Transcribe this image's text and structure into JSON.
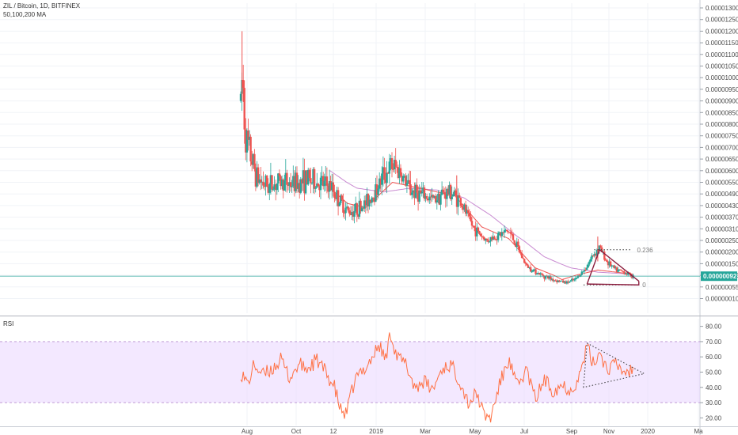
{
  "header": {
    "symbol": "ZIL / Bitcoin, 1D, BITFINEX",
    "indicator": "50,100,200 MA"
  },
  "rsi_panel": {
    "label": "RSI"
  },
  "colors": {
    "up": "#26a69a",
    "down": "#ef5350",
    "ma_fast": "#ef5350",
    "ma_slow": "#c98bd1",
    "rsi_line": "#ff7043",
    "rsi_band": "#ead6ff",
    "last_price": "#26a69a",
    "pattern": "#8b1e3f"
  },
  "chart_data": [
    {
      "type": "candlestick",
      "title": "ZIL / Bitcoin, 1D, BITFINEX",
      "subtitle": "50,100,200 MA",
      "x_ticks": [
        "Aug",
        "Oct",
        "12",
        "2019",
        "Mar",
        "May",
        "Jul",
        "Sep",
        "Nov",
        "2020",
        "Ma"
      ],
      "y_ticks": [
        "0.00001300",
        "0.00001250",
        "0.00001200",
        "0.00001150",
        "0.00001100",
        "0.00001050",
        "0.00001000",
        "0.00000950",
        "0.00000900",
        "0.00000850",
        "0.00000800",
        "0.00000750",
        "0.00000700",
        "0.00000650",
        "0.00000600",
        "0.00000550",
        "0.00000490",
        "0.00000430",
        "0.00000370",
        "0.00000310",
        "0.00000250",
        "0.00000200",
        "0.00000150",
        "0.00000095",
        "0.00000055",
        "0.00000010"
      ],
      "last_price": "0.00000092",
      "annotations": [
        "0.236",
        "0"
      ],
      "price_keypoints": [
        {
          "t": 0,
          "p": 9e-06
        },
        {
          "t": 2,
          "p": 1.02e-05
        },
        {
          "t": 5,
          "p": 7.5e-06
        },
        {
          "t": 10,
          "p": 6.8e-06
        },
        {
          "t": 18,
          "p": 5.7e-06
        },
        {
          "t": 30,
          "p": 5.3e-06
        },
        {
          "t": 45,
          "p": 5.5e-06
        },
        {
          "t": 60,
          "p": 5.4e-06
        },
        {
          "t": 75,
          "p": 5.6e-06
        },
        {
          "t": 90,
          "p": 5.4e-06
        },
        {
          "t": 100,
          "p": 5.3e-06
        },
        {
          "t": 110,
          "p": 4.6e-06
        },
        {
          "t": 120,
          "p": 4e-06
        },
        {
          "t": 130,
          "p": 4.1e-06
        },
        {
          "t": 140,
          "p": 4.4e-06
        },
        {
          "t": 150,
          "p": 5e-06
        },
        {
          "t": 160,
          "p": 5.8e-06
        },
        {
          "t": 170,
          "p": 6.2e-06
        },
        {
          "t": 178,
          "p": 6e-06
        },
        {
          "t": 190,
          "p": 5.1e-06
        },
        {
          "t": 205,
          "p": 4.8e-06
        },
        {
          "t": 215,
          "p": 4.6e-06
        },
        {
          "t": 225,
          "p": 4.9e-06
        },
        {
          "t": 235,
          "p": 5e-06
        },
        {
          "t": 245,
          "p": 4.6e-06
        },
        {
          "t": 260,
          "p": 3.2e-06
        },
        {
          "t": 275,
          "p": 2.5e-06
        },
        {
          "t": 290,
          "p": 2.8e-06
        },
        {
          "t": 300,
          "p": 3e-06
        },
        {
          "t": 310,
          "p": 2.2e-06
        },
        {
          "t": 320,
          "p": 1.4e-06
        },
        {
          "t": 335,
          "p": 1e-06
        },
        {
          "t": 350,
          "p": 8e-07
        },
        {
          "t": 365,
          "p": 7e-07
        },
        {
          "t": 375,
          "p": 8e-07
        },
        {
          "t": 385,
          "p": 1.2e-06
        },
        {
          "t": 395,
          "p": 1.9e-06
        },
        {
          "t": 402,
          "p": 2.2e-06
        },
        {
          "t": 410,
          "p": 1.6e-06
        },
        {
          "t": 420,
          "p": 1.2e-06
        },
        {
          "t": 430,
          "p": 1.1e-06
        },
        {
          "t": 440,
          "p": 9e-07
        }
      ],
      "ma_keypoints": [
        {
          "t": 100,
          "p": 6e-06
        },
        {
          "t": 130,
          "p": 5.2e-06
        },
        {
          "t": 160,
          "p": 5e-06
        },
        {
          "t": 190,
          "p": 5.2e-06
        },
        {
          "t": 220,
          "p": 5.1e-06
        },
        {
          "t": 250,
          "p": 4.7e-06
        },
        {
          "t": 280,
          "p": 3.8e-06
        },
        {
          "t": 310,
          "p": 2.7e-06
        },
        {
          "t": 340,
          "p": 1.8e-06
        },
        {
          "t": 370,
          "p": 1.3e-06
        },
        {
          "t": 400,
          "p": 1.1e-06
        },
        {
          "t": 440,
          "p": 1e-06
        }
      ],
      "ma_fast_keypoints": [
        {
          "t": 90,
          "p": 5.6e-06
        },
        {
          "t": 120,
          "p": 4.4e-06
        },
        {
          "t": 140,
          "p": 4.2e-06
        },
        {
          "t": 170,
          "p": 5.5e-06
        },
        {
          "t": 200,
          "p": 5.2e-06
        },
        {
          "t": 240,
          "p": 4.8e-06
        },
        {
          "t": 270,
          "p": 3.2e-06
        },
        {
          "t": 300,
          "p": 2.6e-06
        },
        {
          "t": 330,
          "p": 1.3e-06
        },
        {
          "t": 360,
          "p": 8e-07
        },
        {
          "t": 400,
          "p": 1.2e-06
        },
        {
          "t": 440,
          "p": 1e-06
        }
      ]
    },
    {
      "type": "line",
      "title": "RSI",
      "y_ticks": [
        "80.00",
        "70.00",
        "60.00",
        "50.00",
        "40.00",
        "30.00",
        "20.00"
      ],
      "ylim": [
        15,
        85
      ],
      "band": [
        30,
        70
      ],
      "rsi_keypoints": [
        {
          "t": 0,
          "v": 50
        },
        {
          "t": 8,
          "v": 42
        },
        {
          "t": 15,
          "v": 55
        },
        {
          "t": 25,
          "v": 48
        },
        {
          "t": 35,
          "v": 52
        },
        {
          "t": 45,
          "v": 58
        },
        {
          "t": 55,
          "v": 46
        },
        {
          "t": 65,
          "v": 55
        },
        {
          "t": 75,
          "v": 52
        },
        {
          "t": 85,
          "v": 58
        },
        {
          "t": 95,
          "v": 50
        },
        {
          "t": 105,
          "v": 40
        },
        {
          "t": 112,
          "v": 25
        },
        {
          "t": 118,
          "v": 22
        },
        {
          "t": 128,
          "v": 45
        },
        {
          "t": 138,
          "v": 52
        },
        {
          "t": 148,
          "v": 60
        },
        {
          "t": 155,
          "v": 68
        },
        {
          "t": 162,
          "v": 58
        },
        {
          "t": 168,
          "v": 76
        },
        {
          "t": 175,
          "v": 60
        },
        {
          "t": 185,
          "v": 55
        },
        {
          "t": 195,
          "v": 40
        },
        {
          "t": 205,
          "v": 44
        },
        {
          "t": 215,
          "v": 38
        },
        {
          "t": 225,
          "v": 52
        },
        {
          "t": 235,
          "v": 55
        },
        {
          "t": 245,
          "v": 45
        },
        {
          "t": 255,
          "v": 30
        },
        {
          "t": 265,
          "v": 36
        },
        {
          "t": 272,
          "v": 22
        },
        {
          "t": 280,
          "v": 20
        },
        {
          "t": 290,
          "v": 42
        },
        {
          "t": 300,
          "v": 58
        },
        {
          "t": 310,
          "v": 40
        },
        {
          "t": 320,
          "v": 52
        },
        {
          "t": 330,
          "v": 32
        },
        {
          "t": 340,
          "v": 45
        },
        {
          "t": 350,
          "v": 38
        },
        {
          "t": 360,
          "v": 42
        },
        {
          "t": 370,
          "v": 38
        },
        {
          "t": 380,
          "v": 48
        },
        {
          "t": 388,
          "v": 67
        },
        {
          "t": 395,
          "v": 55
        },
        {
          "t": 402,
          "v": 64
        },
        {
          "t": 410,
          "v": 52
        },
        {
          "t": 420,
          "v": 55
        },
        {
          "t": 430,
          "v": 50
        },
        {
          "t": 440,
          "v": 52
        }
      ]
    }
  ]
}
